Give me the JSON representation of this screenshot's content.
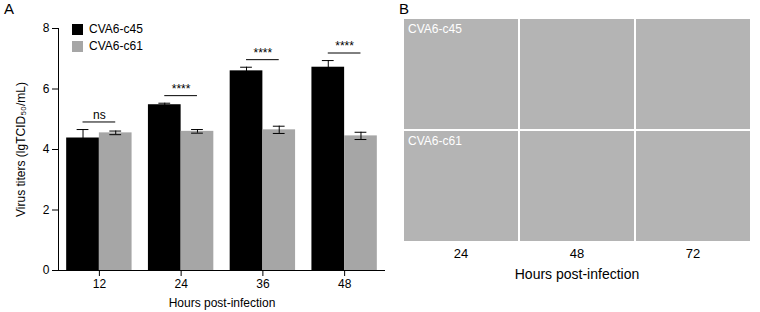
{
  "chart_data": {
    "type": "bar",
    "panel_label": "A",
    "categories": [
      "12",
      "24",
      "36",
      "48"
    ],
    "x_label": "Hours post-infection",
    "y_label": "Virus titers (lgTCID₅₀/mL)",
    "series": [
      {
        "name": "CVA6-c45",
        "color": "#000000",
        "values": [
          4.38,
          5.48,
          6.6,
          6.72
        ],
        "errors": [
          0.28,
          0.05,
          0.12,
          0.22
        ]
      },
      {
        "name": "CVA6-c61",
        "color": "#a6a6a6",
        "values": [
          4.55,
          4.6,
          4.65,
          4.45
        ],
        "errors": [
          0.06,
          0.06,
          0.12,
          0.12
        ]
      }
    ],
    "ylim": [
      0,
      8
    ],
    "yticks": [
      0,
      2,
      4,
      6,
      8
    ],
    "grid": false,
    "legend": "top-left",
    "annotations": [
      {
        "category": "12",
        "text": "ns"
      },
      {
        "category": "24",
        "text": "****"
      },
      {
        "category": "36",
        "text": "****"
      },
      {
        "category": "48",
        "text": "****"
      }
    ]
  },
  "panel_b": {
    "label": "B",
    "rows": [
      "CVA6-c45",
      "CVA6-c61"
    ],
    "columns": [
      "24",
      "48",
      "72"
    ],
    "x_label": "Hours post-infection"
  }
}
